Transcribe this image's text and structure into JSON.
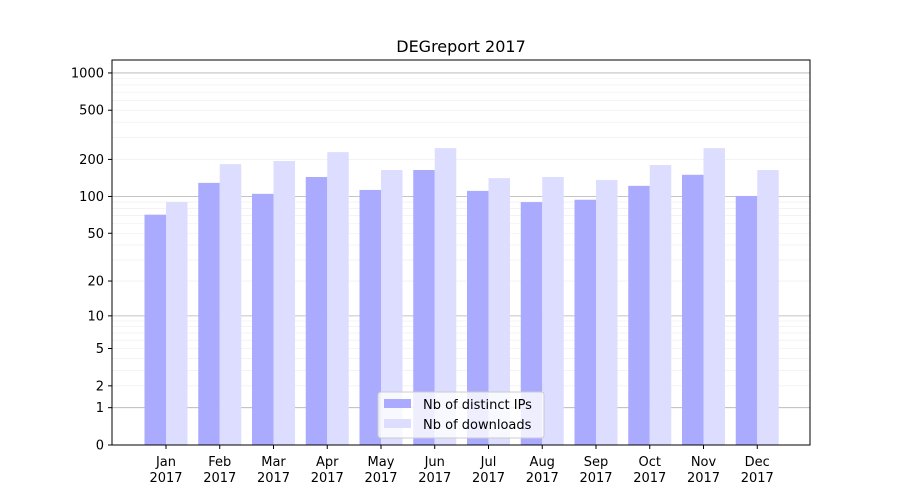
{
  "chart_data": {
    "type": "bar",
    "title": "DEGreport 2017",
    "xlabel": "",
    "ylabel": "",
    "yscale": "log10(y+1)",
    "ylim": [
      0,
      1300
    ],
    "yticks": [
      0,
      1,
      2,
      5,
      10,
      20,
      50,
      100,
      200,
      500,
      1000
    ],
    "grid": true,
    "legend_position": "bottom-center",
    "categories": [
      "Jan\n2017",
      "Feb\n2017",
      "Mar\n2017",
      "Apr\n2017",
      "May\n2017",
      "Jun\n2017",
      "Jul\n2017",
      "Aug\n2017",
      "Sep\n2017",
      "Oct\n2017",
      "Nov\n2017",
      "Dec\n2017"
    ],
    "series": [
      {
        "name": "Nb of distinct IPs",
        "color": "#aaaaff",
        "values": [
          71,
          129,
          105,
          144,
          113,
          164,
          111,
          90,
          94,
          122,
          150,
          101
        ]
      },
      {
        "name": "Nb of downloads",
        "color": "#ddddff",
        "values": [
          90,
          183,
          194,
          229,
          164,
          247,
          141,
          144,
          136,
          180,
          247,
          164
        ]
      }
    ]
  }
}
